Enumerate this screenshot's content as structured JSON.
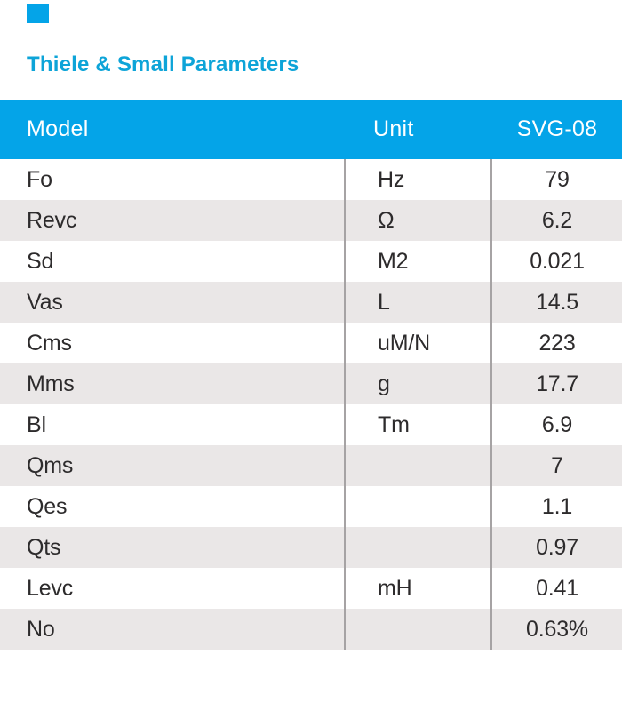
{
  "title": "Thiele & Small Parameters",
  "colors": {
    "accent": "#04a4e8",
    "title_text": "#0da4d8",
    "header_text": "#ffffff",
    "row_stripe": "#eae7e7",
    "column_divider": "#a6a3a4",
    "body_text": "#2d2b2c",
    "background": "#ffffff"
  },
  "table": {
    "headers": [
      "Model",
      "Unit",
      "SVG-08"
    ],
    "rows": [
      {
        "model": "Fo",
        "unit": "Hz",
        "value": "79"
      },
      {
        "model": "Revc",
        "unit": "Ω",
        "value": "6.2"
      },
      {
        "model": "Sd",
        "unit": "M2",
        "value": "0.021"
      },
      {
        "model": "Vas",
        "unit": "L",
        "value": "14.5"
      },
      {
        "model": "Cms",
        "unit": "uM/N",
        "value": "223"
      },
      {
        "model": "Mms",
        "unit": "g",
        "value": "17.7"
      },
      {
        "model": "Bl",
        "unit": "Tm",
        "value": "6.9"
      },
      {
        "model": "Qms",
        "unit": "",
        "value": "7"
      },
      {
        "model": "Qes",
        "unit": "",
        "value": "1.1"
      },
      {
        "model": "Qts",
        "unit": "",
        "value": "0.97"
      },
      {
        "model": "Levc",
        "unit": "mH",
        "value": "0.41"
      },
      {
        "model": "No",
        "unit": "",
        "value": "0.63%"
      }
    ]
  }
}
